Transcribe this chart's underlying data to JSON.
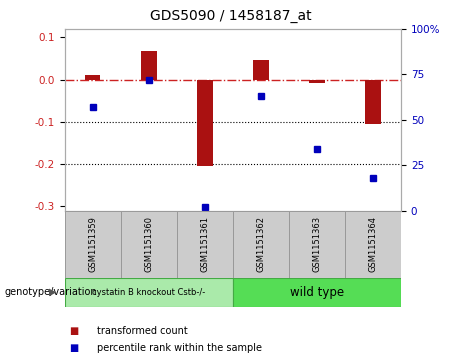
{
  "title": "GDS5090 / 1458187_at",
  "categories": [
    "GSM1151359",
    "GSM1151360",
    "GSM1151361",
    "GSM1151362",
    "GSM1151363",
    "GSM1151364"
  ],
  "bar_values": [
    0.012,
    0.068,
    -0.205,
    0.047,
    -0.008,
    -0.105
  ],
  "dot_values_pct": [
    57,
    72,
    2,
    63,
    34,
    18
  ],
  "ylim_left": [
    -0.31,
    0.12
  ],
  "ylim_right": [
    0,
    100
  ],
  "yticks_left": [
    -0.3,
    -0.2,
    -0.1,
    0.0,
    0.1
  ],
  "yticks_right": [
    0,
    25,
    50,
    75,
    100
  ],
  "bar_color": "#aa1111",
  "dot_color": "#0000bb",
  "dashed_line_color": "#cc2222",
  "dotted_line_color": "#000000",
  "group1_label": "cystatin B knockout Cstb-/-",
  "group2_label": "wild type",
  "group1_color": "#aaeaaa",
  "group2_color": "#55dd55",
  "group1_indices": [
    0,
    1,
    2
  ],
  "group2_indices": [
    3,
    4,
    5
  ],
  "legend_bar_label": "transformed count",
  "legend_dot_label": "percentile rank within the sample",
  "genotype_label": "genotype/variation",
  "background_color": "#ffffff"
}
